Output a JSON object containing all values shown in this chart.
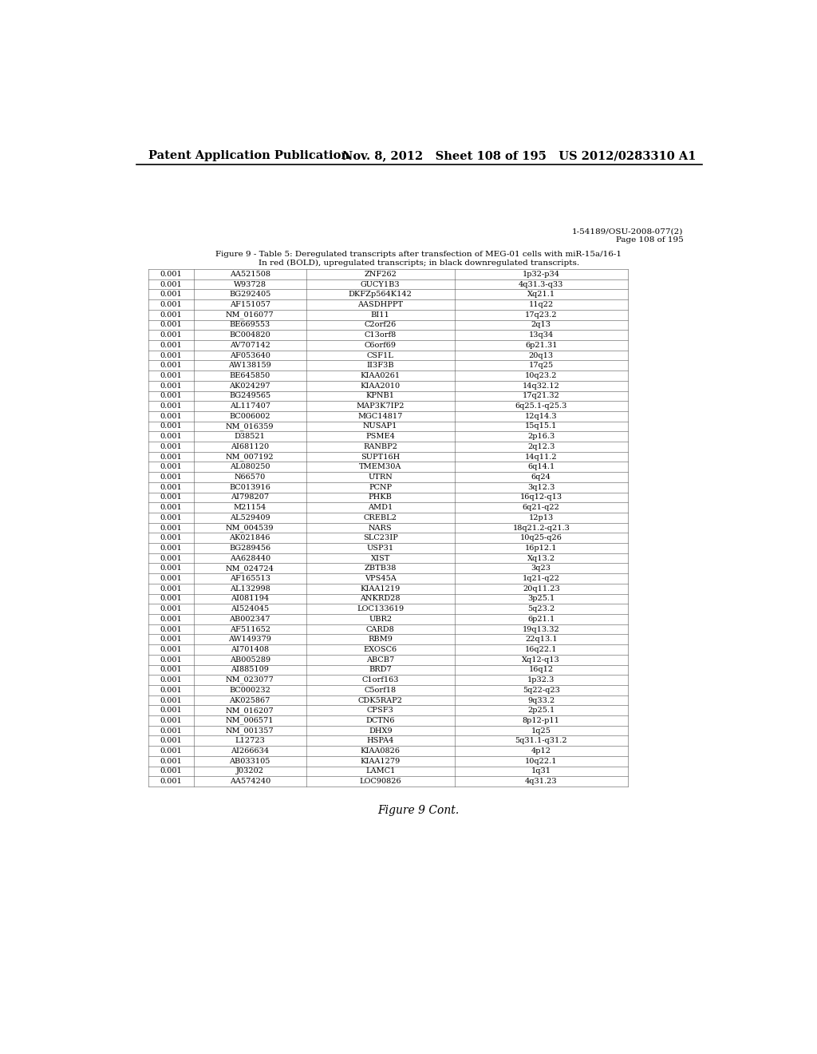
{
  "header_left": "Patent Application Publication",
  "header_right": "Nov. 8, 2012   Sheet 108 of 195   US 2012/0283310 A1",
  "page_ref_line1": "1-54189/OSU-2008-077(2)",
  "page_ref_line2": "Page 108 of 195",
  "figure_caption_line1": "Figure 9 - Table 5: Deregulated transcripts after transfection of MEG-01 cells with miR-15a/16-1",
  "figure_caption_line2": "In red (BOLD), upregulated transcripts; in black downregulated transcripts.",
  "footer": "Figure 9 Cont.",
  "rows": [
    [
      "0.001",
      "AA521508",
      "ZNF262",
      "1p32-p34"
    ],
    [
      "0.001",
      "W93728",
      "GUCY1B3",
      "4q31.3-q33"
    ],
    [
      "0.001",
      "BG292405",
      "DKFZp564K142",
      "Xq21.1"
    ],
    [
      "0.001",
      "AF151057",
      "AASDHPPT",
      "11q22"
    ],
    [
      "0.001",
      "NM_016077",
      "BI11",
      "17q23.2"
    ],
    [
      "0.001",
      "BE669553",
      "C2orf26",
      "2q13"
    ],
    [
      "0.001",
      "BC004820",
      "C13orf8",
      "13q34"
    ],
    [
      "0.001",
      "AV707142",
      "C6orf69",
      "6p21.31"
    ],
    [
      "0.001",
      "AF053640",
      "CSF1L",
      "20q13"
    ],
    [
      "0.001",
      "AW138159",
      "II3F3B",
      "17q25"
    ],
    [
      "0.001",
      "BE645850",
      "KIAA0261",
      "10q23.2"
    ],
    [
      "0.001",
      "AK024297",
      "KIAA2010",
      "14q32.12"
    ],
    [
      "0.001",
      "BG249565",
      "KPNB1",
      "17q21.32"
    ],
    [
      "0.001",
      "AL117407",
      "MAP3K7IP2",
      "6q25.1-q25.3"
    ],
    [
      "0.001",
      "BC006002",
      "MGC14817",
      "12q14.3"
    ],
    [
      "0.001",
      "NM_016359",
      "NUSAP1",
      "15q15.1"
    ],
    [
      "0.001",
      "D38521",
      "PSME4",
      "2p16.3"
    ],
    [
      "0.001",
      "AI681120",
      "RANBP2",
      "2q12.3"
    ],
    [
      "0.001",
      "NM_007192",
      "SUPT16H",
      "14q11.2"
    ],
    [
      "0.001",
      "AL080250",
      "TMEM30A",
      "6q14.1"
    ],
    [
      "0.001",
      "N66570",
      "UTRN",
      "6q24"
    ],
    [
      "0.001",
      "BC013916",
      "PCNP",
      "3q12.3"
    ],
    [
      "0.001",
      "AI798207",
      "PHKB",
      "16q12-q13"
    ],
    [
      "0.001",
      "M21154",
      "AMD1",
      "6q21-q22"
    ],
    [
      "0.001",
      "AL529409",
      "CREBL2",
      "12p13"
    ],
    [
      "0.001",
      "NM_004539",
      "NARS",
      "18q21.2-q21.3"
    ],
    [
      "0.001",
      "AK021846",
      "SLC23IP",
      "10q25-q26"
    ],
    [
      "0.001",
      "BG289456",
      "USP31",
      "16p12.1"
    ],
    [
      "0.001",
      "AA628440",
      "XIST",
      "Xq13.2"
    ],
    [
      "0.001",
      "NM_024724",
      "ZBTB38",
      "3q23"
    ],
    [
      "0.001",
      "AF165513",
      "VPS45A",
      "1q21-q22"
    ],
    [
      "0.001",
      "AL132998",
      "KIAA1219",
      "20q11.23"
    ],
    [
      "0.001",
      "AI081194",
      "ANKRD28",
      "3p25.1"
    ],
    [
      "0.001",
      "AI524045",
      "LOC133619",
      "5q23.2"
    ],
    [
      "0.001",
      "AB002347",
      "UBR2",
      "6p21.1"
    ],
    [
      "0.001",
      "AF511652",
      "CARD8",
      "19q13.32"
    ],
    [
      "0.001",
      "AW149379",
      "RBM9",
      "22q13.1"
    ],
    [
      "0.001",
      "AI701408",
      "EXOSC6",
      "16q22.1"
    ],
    [
      "0.001",
      "AB005289",
      "ABCB7",
      "Xq12-q13"
    ],
    [
      "0.001",
      "AI885109",
      "BRD7",
      "16q12"
    ],
    [
      "0.001",
      "NM_023077",
      "C1orf163",
      "1p32.3"
    ],
    [
      "0.001",
      "BC000232",
      "C5orf18",
      "5q22-q23"
    ],
    [
      "0.001",
      "AK025867",
      "CDK5RAP2",
      "9q33.2"
    ],
    [
      "0.001",
      "NM_016207",
      "CPSF3",
      "2p25.1"
    ],
    [
      "0.001",
      "NM_006571",
      "DCTN6",
      "8p12-p11"
    ],
    [
      "0.001",
      "NM_001357",
      "DHX9",
      "1q25"
    ],
    [
      "0.001",
      "L12723",
      "HSPA4",
      "5q31.1-q31.2"
    ],
    [
      "0.001",
      "AI266634",
      "KIAA0826",
      "4p12"
    ],
    [
      "0.001",
      "AB033105",
      "KIAA1279",
      "10q22.1"
    ],
    [
      "0.001",
      "J03202",
      "LAMC1",
      "1q31"
    ],
    [
      "0.001",
      "AA574240",
      "LOC90826",
      "4q31.23"
    ]
  ]
}
